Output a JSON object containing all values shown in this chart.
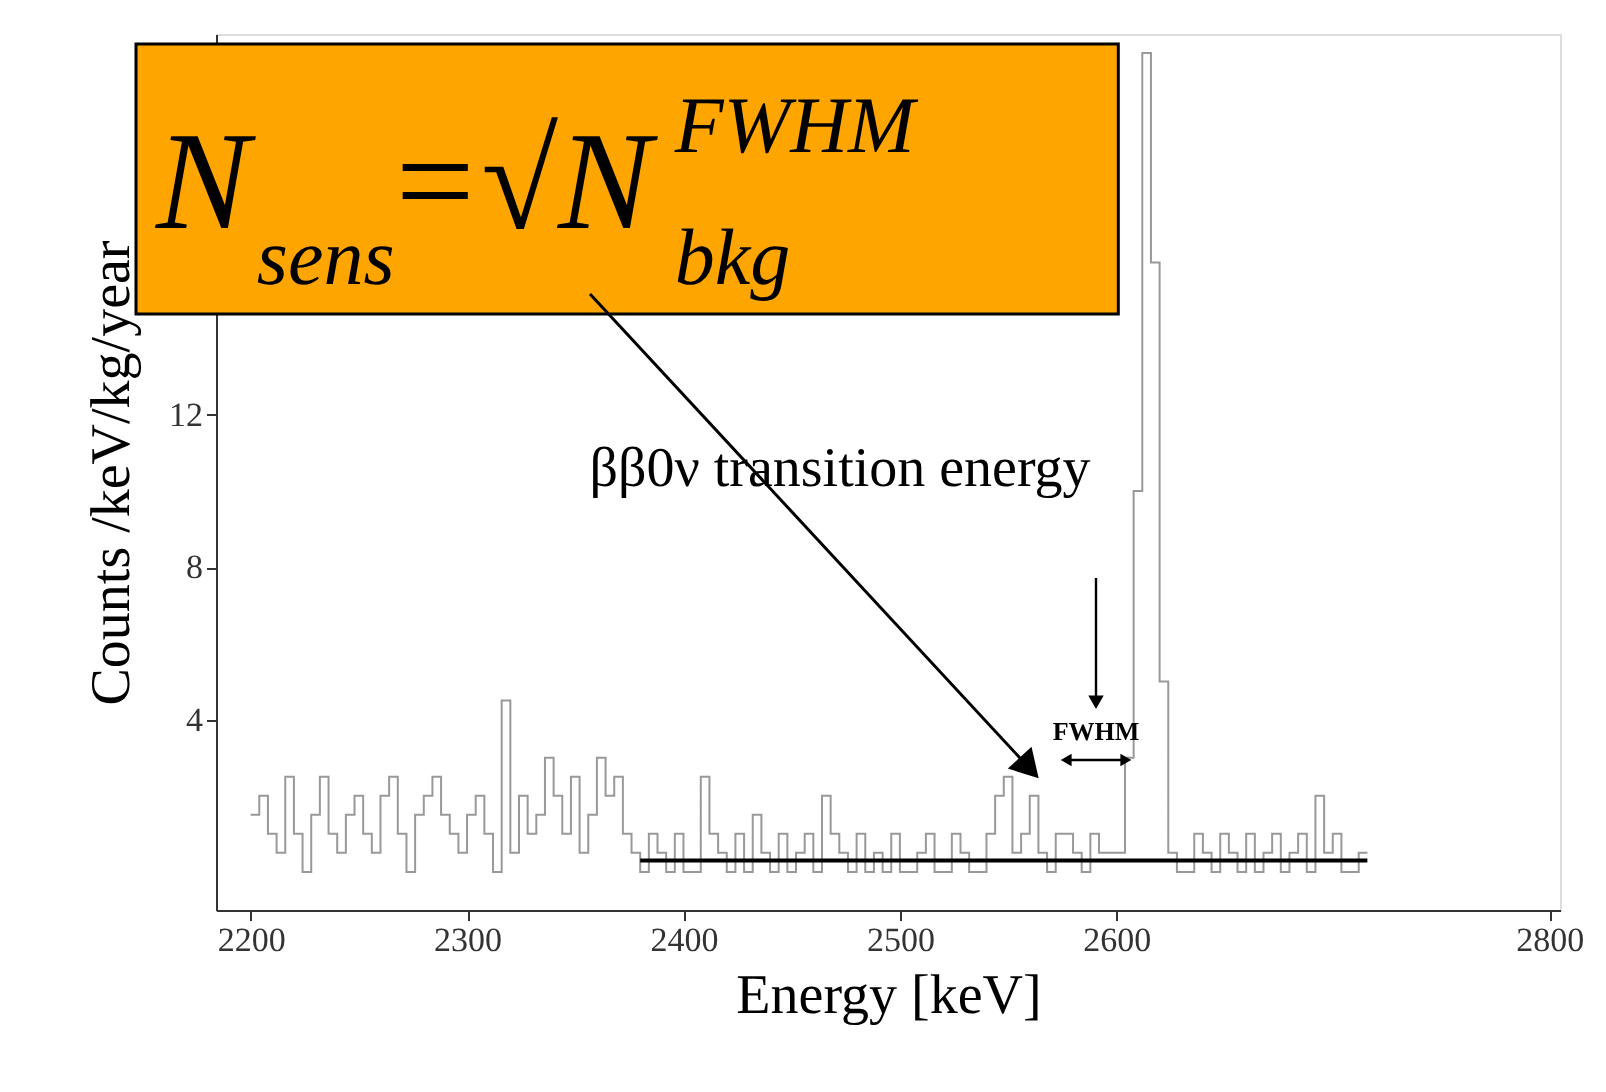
{
  "chart_data": {
    "type": "histogram",
    "bins": [
      2200,
      2204,
      2208,
      2212,
      2216,
      2220,
      2224,
      2228,
      2232,
      2236,
      2240,
      2244,
      2248,
      2252,
      2256,
      2260,
      2264,
      2268,
      2272,
      2276,
      2280,
      2284,
      2288,
      2292,
      2296,
      2300,
      2304,
      2308,
      2312,
      2316,
      2320,
      2324,
      2328,
      2332,
      2336,
      2340,
      2344,
      2348,
      2352,
      2356,
      2360,
      2364,
      2368,
      2372,
      2376,
      2380,
      2384,
      2388,
      2392,
      2396,
      2400,
      2404,
      2408,
      2412,
      2416,
      2420,
      2424,
      2428,
      2432,
      2436,
      2440,
      2444,
      2448,
      2452,
      2456,
      2460,
      2464,
      2468,
      2472,
      2476,
      2480,
      2484,
      2488,
      2492,
      2496,
      2500,
      2504,
      2508,
      2512,
      2516,
      2520,
      2524,
      2528,
      2532,
      2536,
      2540,
      2544,
      2548,
      2552,
      2556,
      2560,
      2564,
      2568,
      2572,
      2576,
      2580,
      2584,
      2588,
      2592,
      2596,
      2600,
      2604,
      2608,
      2612,
      2616,
      2620,
      2624,
      2628,
      2632,
      2636,
      2640,
      2644,
      2648,
      2652,
      2656,
      2660,
      2664,
      2668,
      2672,
      2676,
      2680,
      2684,
      2688,
      2692,
      2696,
      2700,
      2704,
      2708,
      2712,
      2716
    ],
    "values": [
      1.5,
      2,
      1,
      0.5,
      2.5,
      1,
      0,
      1.5,
      2.5,
      1,
      0.5,
      1.5,
      2,
      1,
      0.5,
      2,
      2.5,
      1,
      0,
      1.5,
      2,
      2.5,
      1.5,
      1,
      0.5,
      1.5,
      2,
      1,
      0,
      4.5,
      0.5,
      2,
      1,
      1.5,
      3,
      2,
      1,
      2.5,
      0.5,
      1.5,
      3,
      2,
      2.5,
      1,
      0.5,
      0,
      1,
      0.5,
      0,
      1,
      0,
      0,
      2.5,
      1,
      0.5,
      0,
      1,
      0,
      1.5,
      0.5,
      0,
      1,
      0,
      0.5,
      1,
      0,
      2,
      1,
      0.5,
      0,
      1,
      0,
      0.5,
      0,
      1,
      0,
      0,
      0.5,
      1,
      0,
      0,
      1,
      0.5,
      0,
      0,
      1,
      2,
      2.5,
      0.5,
      1,
      2,
      0.5,
      0,
      1,
      1,
      0.5,
      0,
      1,
      0.5,
      0.5,
      0.5,
      3,
      10,
      21.5,
      16,
      5,
      0.5,
      0,
      0,
      1,
      0.5,
      0,
      1,
      0.5,
      0,
      1,
      0,
      0.5,
      1,
      0,
      0.5,
      1,
      0,
      2,
      0.5,
      1,
      0,
      0,
      0.5
    ],
    "color": "#999999",
    "series": [
      {
        "type": "line",
        "x": [
          2380,
          2716
        ],
        "values": [
          0.3,
          0.3
        ],
        "color": "#000000"
      }
    ],
    "xlabel": "Energy  [keV]",
    "ylabel": "Counts /keV/kg/year",
    "xlim": [
      2184,
      2805
    ],
    "xticks": [
      2200,
      2300,
      2400,
      2500,
      2600,
      2800
    ],
    "ylim": [
      -1,
      22
    ],
    "yticks": [
      4,
      8,
      12
    ],
    "grid": false,
    "annotations": [
      "N$_{sens}$=√N$^{FWHM}$$_{bkg}$",
      "ββ0ν transition energy",
      "FWHM"
    ]
  }
}
